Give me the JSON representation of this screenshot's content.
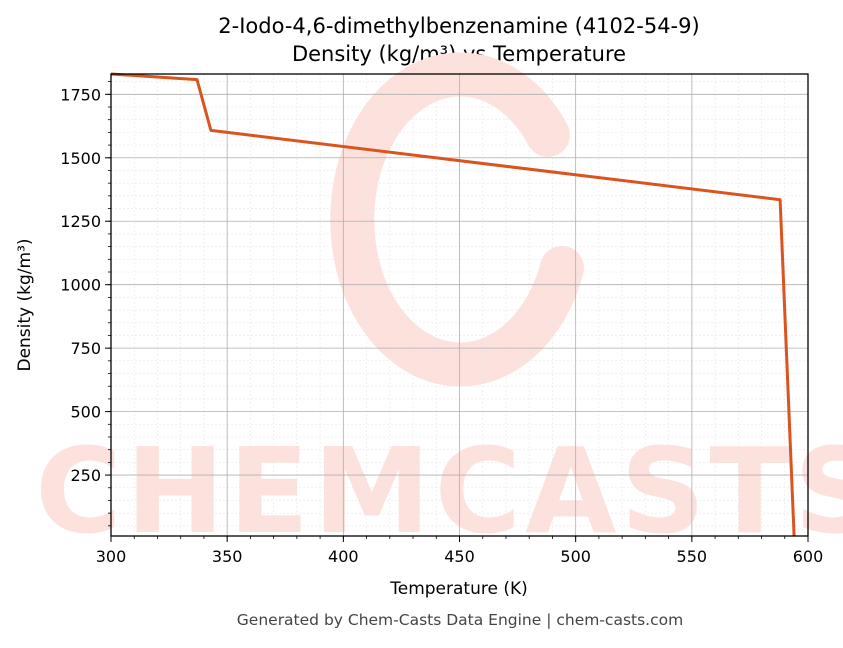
{
  "chart_data": {
    "type": "line",
    "title": "2-Iodo-4,6-dimethylbenzenamine (4102-54-9)",
    "subtitle": "Density (kg/m³) vs Temperature",
    "xlabel": "Temperature (K)",
    "ylabel": "Density (kg/m³)",
    "xlim": [
      300,
      600
    ],
    "ylim": [
      10,
      1830
    ],
    "x_ticks": [
      300,
      350,
      400,
      450,
      500,
      550,
      600
    ],
    "y_ticks": [
      250,
      500,
      750,
      1000,
      1250,
      1500,
      1750
    ],
    "grid": true,
    "series": [
      {
        "color": "#d9541e",
        "x": [
          300,
          337,
          343,
          588,
          594
        ],
        "y": [
          1830,
          1808,
          1608,
          1335,
          10
        ]
      }
    ]
  },
  "watermark": {
    "text": "CHEMCASTS",
    "color": "#fde1dc"
  },
  "footer": "Generated by Chem-Casts Data Engine | chem-casts.com"
}
